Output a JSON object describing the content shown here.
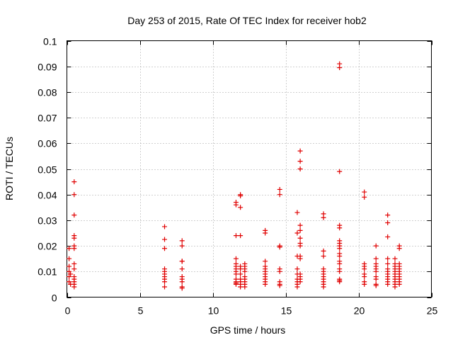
{
  "chart_data": {
    "type": "scatter",
    "title": "Day 253 of 2015, Rate Of TEC Index for receiver hob2",
    "xlabel": "GPS time / hours",
    "ylabel": "ROTI / TECUs",
    "xlim": [
      0,
      25
    ],
    "ylim": [
      0,
      0.1
    ],
    "xticks": [
      "0",
      "5",
      "10",
      "15",
      "20",
      "25"
    ],
    "yticks": [
      "0",
      "0.01",
      "0.02",
      "0.03",
      "0.04",
      "0.05",
      "0.06",
      "0.07",
      "0.08",
      "0.09",
      "0.1"
    ],
    "grid": true,
    "marker": "+",
    "color": "#e00000",
    "series": [
      {
        "points": [
          [
            0.15,
            0.008
          ],
          [
            0.15,
            0.01
          ],
          [
            0.15,
            0.012
          ],
          [
            0.15,
            0.015
          ],
          [
            0.15,
            0.019
          ],
          [
            0.15,
            0.006
          ],
          [
            0.25,
            0.005
          ],
          [
            0.25,
            0.009
          ],
          [
            0.5,
            0.045
          ],
          [
            0.5,
            0.04
          ],
          [
            0.5,
            0.032
          ],
          [
            0.5,
            0.024
          ],
          [
            0.5,
            0.023
          ],
          [
            0.5,
            0.02
          ],
          [
            0.5,
            0.019
          ],
          [
            0.5,
            0.013
          ],
          [
            0.5,
            0.011
          ],
          [
            0.5,
            0.008
          ],
          [
            0.5,
            0.007
          ],
          [
            0.5,
            0.006
          ],
          [
            0.5,
            0.005
          ],
          [
            0.5,
            0.004
          ],
          [
            6.7,
            0.0275
          ],
          [
            6.7,
            0.0225
          ],
          [
            6.7,
            0.019
          ],
          [
            6.7,
            0.011
          ],
          [
            6.7,
            0.01
          ],
          [
            6.7,
            0.009
          ],
          [
            6.7,
            0.008
          ],
          [
            6.7,
            0.007
          ],
          [
            6.7,
            0.006
          ],
          [
            6.7,
            0.004
          ],
          [
            7.9,
            0.022
          ],
          [
            7.9,
            0.02
          ],
          [
            7.9,
            0.014
          ],
          [
            7.9,
            0.014
          ],
          [
            7.9,
            0.011
          ],
          [
            7.9,
            0.008
          ],
          [
            7.9,
            0.007
          ],
          [
            7.9,
            0.006
          ],
          [
            7.9,
            0.004
          ],
          [
            7.9,
            0.0035
          ],
          [
            11.6,
            0.037
          ],
          [
            11.6,
            0.036
          ],
          [
            11.6,
            0.024
          ],
          [
            11.6,
            0.015
          ],
          [
            11.6,
            0.013
          ],
          [
            11.6,
            0.012
          ],
          [
            11.6,
            0.011
          ],
          [
            11.6,
            0.01
          ],
          [
            11.6,
            0.009
          ],
          [
            11.6,
            0.007
          ],
          [
            11.6,
            0.006
          ],
          [
            11.6,
            0.0055
          ],
          [
            11.6,
            0.005
          ],
          [
            11.9,
            0.04
          ],
          [
            11.9,
            0.0395
          ],
          [
            11.9,
            0.035
          ],
          [
            11.9,
            0.024
          ],
          [
            11.9,
            0.012
          ],
          [
            11.9,
            0.011
          ],
          [
            11.9,
            0.009
          ],
          [
            11.9,
            0.007
          ],
          [
            11.9,
            0.006
          ],
          [
            11.9,
            0.005
          ],
          [
            11.9,
            0.004
          ],
          [
            12.2,
            0.013
          ],
          [
            12.2,
            0.012
          ],
          [
            12.2,
            0.011
          ],
          [
            12.2,
            0.01
          ],
          [
            12.2,
            0.008
          ],
          [
            12.2,
            0.007
          ],
          [
            12.2,
            0.006
          ],
          [
            12.2,
            0.005
          ],
          [
            12.2,
            0.004
          ],
          [
            13.6,
            0.026
          ],
          [
            13.6,
            0.025
          ],
          [
            13.6,
            0.014
          ],
          [
            13.6,
            0.012
          ],
          [
            13.6,
            0.011
          ],
          [
            13.6,
            0.01
          ],
          [
            13.6,
            0.009
          ],
          [
            13.6,
            0.008
          ],
          [
            13.6,
            0.007
          ],
          [
            13.6,
            0.006
          ],
          [
            13.6,
            0.005
          ],
          [
            14.6,
            0.042
          ],
          [
            14.6,
            0.04
          ],
          [
            14.6,
            0.02
          ],
          [
            14.6,
            0.0195
          ],
          [
            14.6,
            0.011
          ],
          [
            14.6,
            0.01
          ],
          [
            14.6,
            0.006
          ],
          [
            14.6,
            0.005
          ],
          [
            14.6,
            0.0045
          ],
          [
            15.8,
            0.033
          ],
          [
            15.8,
            0.025
          ],
          [
            15.8,
            0.016
          ],
          [
            15.8,
            0.011
          ],
          [
            15.8,
            0.009
          ],
          [
            15.8,
            0.007
          ],
          [
            15.8,
            0.006
          ],
          [
            15.8,
            0.005
          ],
          [
            15.8,
            0.004
          ],
          [
            16.0,
            0.057
          ],
          [
            16.0,
            0.053
          ],
          [
            16.0,
            0.05
          ],
          [
            16.0,
            0.028
          ],
          [
            16.0,
            0.026
          ],
          [
            16.0,
            0.023
          ],
          [
            16.0,
            0.021
          ],
          [
            16.0,
            0.02
          ],
          [
            16.0,
            0.016
          ],
          [
            16.0,
            0.015
          ],
          [
            16.0,
            0.009
          ],
          [
            16.0,
            0.008
          ],
          [
            16.0,
            0.007
          ],
          [
            16.0,
            0.006
          ],
          [
            17.6,
            0.0325
          ],
          [
            17.6,
            0.031
          ],
          [
            17.6,
            0.018
          ],
          [
            17.6,
            0.016
          ],
          [
            17.6,
            0.011
          ],
          [
            17.6,
            0.01
          ],
          [
            17.6,
            0.009
          ],
          [
            17.6,
            0.008
          ],
          [
            17.6,
            0.007
          ],
          [
            17.6,
            0.006
          ],
          [
            17.6,
            0.005
          ],
          [
            17.6,
            0.004
          ],
          [
            18.7,
            0.091
          ],
          [
            18.7,
            0.0895
          ],
          [
            18.7,
            0.049
          ],
          [
            18.7,
            0.028
          ],
          [
            18.7,
            0.027
          ],
          [
            18.7,
            0.022
          ],
          [
            18.7,
            0.021
          ],
          [
            18.7,
            0.02
          ],
          [
            18.7,
            0.019
          ],
          [
            18.7,
            0.017
          ],
          [
            18.7,
            0.016
          ],
          [
            18.7,
            0.014
          ],
          [
            18.7,
            0.013
          ],
          [
            18.7,
            0.011
          ],
          [
            18.7,
            0.01
          ],
          [
            18.7,
            0.007
          ],
          [
            18.7,
            0.0065
          ],
          [
            18.7,
            0.006
          ],
          [
            20.4,
            0.041
          ],
          [
            20.4,
            0.039
          ],
          [
            20.4,
            0.013
          ],
          [
            20.4,
            0.012
          ],
          [
            20.4,
            0.011
          ],
          [
            20.4,
            0.009
          ],
          [
            20.4,
            0.008
          ],
          [
            20.4,
            0.006
          ],
          [
            20.4,
            0.005
          ],
          [
            21.2,
            0.02
          ],
          [
            21.2,
            0.015
          ],
          [
            21.2,
            0.013
          ],
          [
            21.2,
            0.012
          ],
          [
            21.2,
            0.011
          ],
          [
            21.2,
            0.01
          ],
          [
            21.2,
            0.008
          ],
          [
            21.2,
            0.007
          ],
          [
            21.2,
            0.005
          ],
          [
            21.2,
            0.0045
          ],
          [
            22.0,
            0.032
          ],
          [
            22.0,
            0.029
          ],
          [
            22.0,
            0.0235
          ],
          [
            22.0,
            0.015
          ],
          [
            22.0,
            0.013
          ],
          [
            22.0,
            0.011
          ],
          [
            22.0,
            0.01
          ],
          [
            22.0,
            0.009
          ],
          [
            22.0,
            0.008
          ],
          [
            22.0,
            0.007
          ],
          [
            22.0,
            0.006
          ],
          [
            22.0,
            0.005
          ],
          [
            22.5,
            0.015
          ],
          [
            22.5,
            0.013
          ],
          [
            22.5,
            0.012
          ],
          [
            22.5,
            0.011
          ],
          [
            22.5,
            0.01
          ],
          [
            22.5,
            0.009
          ],
          [
            22.5,
            0.008
          ],
          [
            22.5,
            0.007
          ],
          [
            22.5,
            0.006
          ],
          [
            22.5,
            0.005
          ],
          [
            22.5,
            0.004
          ],
          [
            22.8,
            0.02
          ],
          [
            22.8,
            0.019
          ],
          [
            22.8,
            0.013
          ],
          [
            22.8,
            0.012
          ],
          [
            22.8,
            0.011
          ],
          [
            22.8,
            0.01
          ],
          [
            22.8,
            0.009
          ],
          [
            22.8,
            0.008
          ],
          [
            22.8,
            0.007
          ],
          [
            22.8,
            0.006
          ],
          [
            22.8,
            0.005
          ]
        ]
      }
    ]
  }
}
